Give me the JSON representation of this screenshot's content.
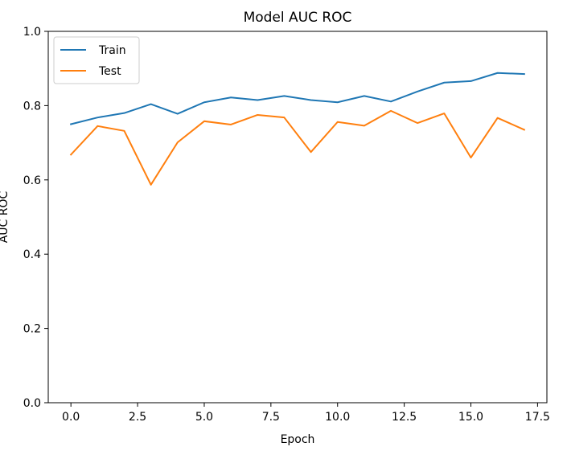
{
  "chart_data": {
    "type": "line",
    "title": "Model AUC ROC",
    "xlabel": "Epoch",
    "ylabel": "AUC ROC",
    "xlim": [
      -0.85,
      17.85
    ],
    "ylim": [
      0.0,
      1.0
    ],
    "x_ticks": [
      0.0,
      2.5,
      5.0,
      7.5,
      10.0,
      12.5,
      15.0,
      17.5
    ],
    "x_tick_labels": [
      "0.0",
      "2.5",
      "5.0",
      "7.5",
      "10.0",
      "12.5",
      "15.0",
      "17.5"
    ],
    "y_ticks": [
      0.0,
      0.2,
      0.4,
      0.6,
      0.8,
      1.0
    ],
    "y_tick_labels": [
      "0.0",
      "0.2",
      "0.4",
      "0.6",
      "0.8",
      "1.0"
    ],
    "grid": false,
    "legend_position": "top-left",
    "x": [
      0,
      1,
      2,
      3,
      4,
      5,
      6,
      7,
      8,
      9,
      10,
      11,
      12,
      13,
      14,
      15,
      16,
      17
    ],
    "series": [
      {
        "name": "Train",
        "color": "#1f77b4",
        "values": [
          0.75,
          0.768,
          0.78,
          0.804,
          0.778,
          0.809,
          0.822,
          0.815,
          0.826,
          0.815,
          0.809,
          0.826,
          0.811,
          0.838,
          0.862,
          0.866,
          0.888,
          0.885
        ]
      },
      {
        "name": "Test",
        "color": "#ff7f0e",
        "values": [
          0.668,
          0.745,
          0.732,
          0.587,
          0.701,
          0.758,
          0.749,
          0.775,
          0.768,
          0.675,
          0.756,
          0.746,
          0.786,
          0.753,
          0.779,
          0.66,
          0.767,
          0.735
        ]
      }
    ]
  }
}
